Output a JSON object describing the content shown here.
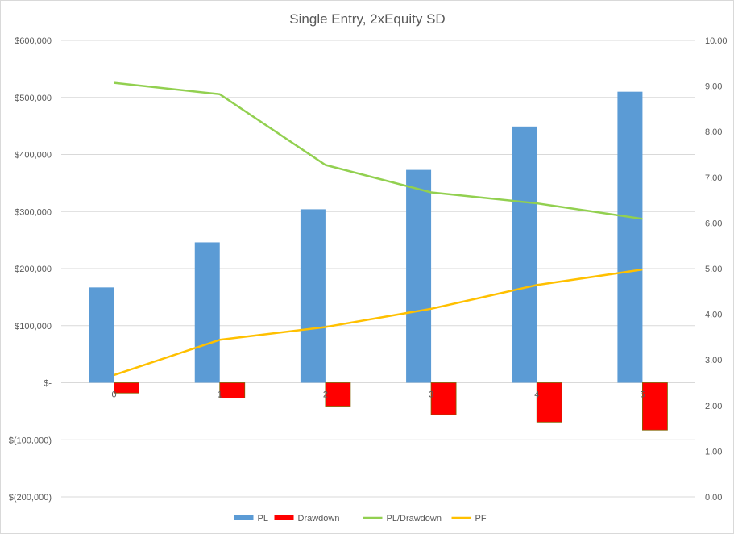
{
  "chart_data": {
    "type": "bar",
    "title": "Single Entry, 2xEquity SD",
    "categories": [
      "0",
      "1",
      "2",
      "3",
      "4",
      "5"
    ],
    "series": [
      {
        "name": "PL",
        "kind": "bar",
        "axis": "left",
        "color": "#5b9bd5",
        "values": [
          167000,
          246000,
          304000,
          373000,
          449000,
          510000
        ]
      },
      {
        "name": "Drawdown",
        "kind": "bar",
        "axis": "left",
        "color": "#ff0000",
        "values": [
          -18000,
          -27000,
          -41000,
          -56000,
          -69000,
          -83000
        ]
      },
      {
        "name": "PL/Drawdown",
        "kind": "line",
        "axis": "right",
        "color": "#92d050",
        "values": [
          9.07,
          8.82,
          7.27,
          6.67,
          6.43,
          6.09
        ]
      },
      {
        "name": "PF",
        "kind": "line",
        "axis": "right",
        "color": "#ffc000",
        "values": [
          2.67,
          3.44,
          3.72,
          4.12,
          4.64,
          4.98
        ]
      }
    ],
    "y_left": {
      "range": [
        -200000,
        600000
      ],
      "ticks": [
        600000,
        500000,
        400000,
        300000,
        200000,
        100000,
        0,
        -100000,
        -200000
      ],
      "tick_labels": [
        "$600,000",
        "$500,000",
        "$400,000",
        "$300,000",
        "$200,000",
        "$100,000",
        "$-",
        "$(100,000)",
        "$(200,000)"
      ]
    },
    "y_right": {
      "range": [
        0,
        10
      ],
      "ticks": [
        10,
        9,
        8,
        7,
        6,
        5,
        4,
        3,
        2,
        1,
        0
      ],
      "tick_labels": [
        "10.00",
        "9.00",
        "8.00",
        "7.00",
        "6.00",
        "5.00",
        "4.00",
        "3.00",
        "2.00",
        "1.00",
        "0.00"
      ]
    },
    "grid": true,
    "legend_position": "bottom"
  }
}
